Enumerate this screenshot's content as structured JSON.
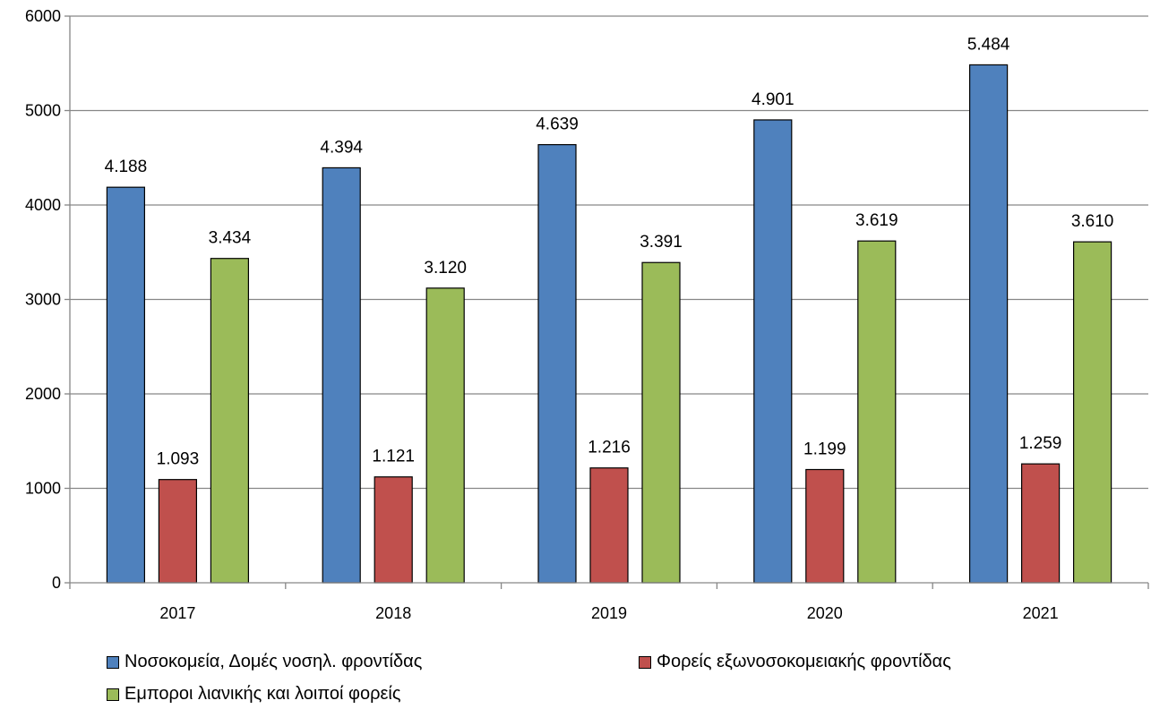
{
  "chart_data": {
    "type": "bar",
    "categories": [
      "2017",
      "2018",
      "2019",
      "2020",
      "2021"
    ],
    "series": [
      {
        "name": "Νοσοκομεία, Δομές νοσηλ. φροντίδας",
        "color": "#4f81bd",
        "values": [
          4188,
          4394,
          4639,
          4901,
          5484
        ],
        "labels": [
          "4.188",
          "4.394",
          "4.639",
          "4.901",
          "5.484"
        ]
      },
      {
        "name": "Φορείς εξωνοσοκομειακής φροντίδας",
        "color": "#c0504d",
        "values": [
          1093,
          1121,
          1216,
          1199,
          1259
        ],
        "labels": [
          "1.093",
          "1.121",
          "1.216",
          "1.199",
          "1.259"
        ]
      },
      {
        "name": "Εμποροι λιανικής και λοιποί φορείς",
        "color": "#9bbb59",
        "values": [
          3434,
          3120,
          3391,
          3619,
          3610
        ],
        "labels": [
          "3.434",
          "3.120",
          "3.391",
          "3.619",
          "3.610"
        ]
      }
    ],
    "ylim": [
      0,
      6000
    ],
    "yticks": [
      "0",
      "1000",
      "2000",
      "3000",
      "4000",
      "5000",
      "6000"
    ],
    "grid": true,
    "legend_position": "bottom"
  }
}
